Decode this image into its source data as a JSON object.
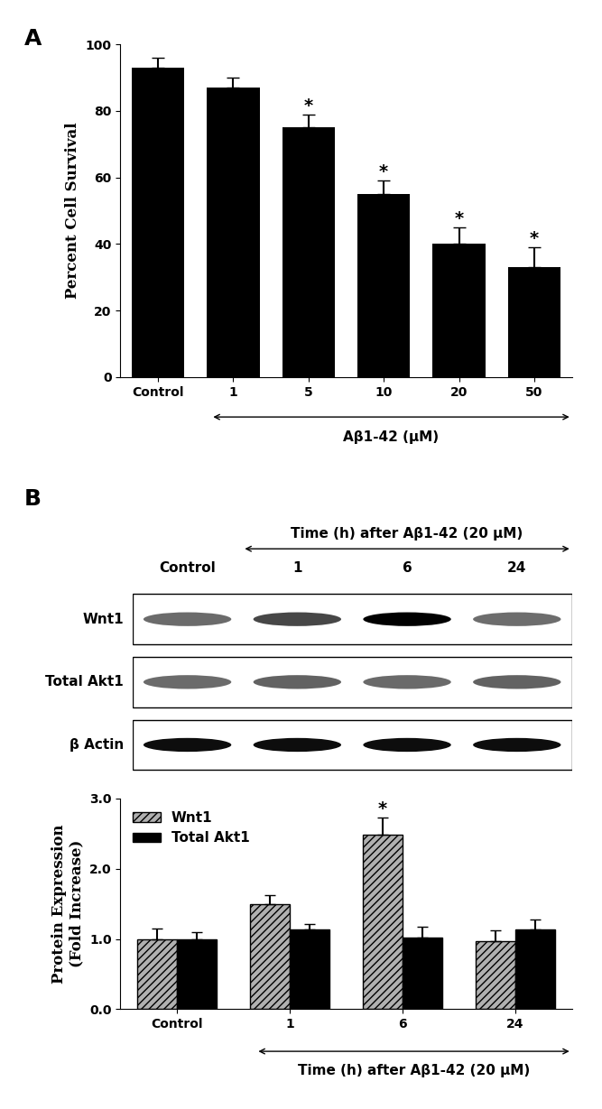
{
  "panel_labels": [
    "A",
    "B"
  ],
  "chart_data": [
    {
      "type": "bar",
      "categories": [
        "Control",
        "1",
        "5",
        "10",
        "20",
        "50"
      ],
      "values": [
        93,
        87,
        75,
        55,
        40,
        33
      ],
      "errors": [
        3,
        3,
        4,
        4,
        5,
        6
      ],
      "significance": [
        null,
        null,
        "*",
        "*",
        "*",
        "*"
      ],
      "color": "#000000",
      "x_label": "Aβ1-42 (μM)",
      "y_label": "Percent Cell Survival",
      "ylim": [
        0,
        100
      ],
      "yticks": [
        0,
        20,
        40,
        60,
        80,
        100
      ]
    },
    {
      "type": "bar",
      "categories": [
        "Control",
        "1",
        "6",
        "24"
      ],
      "series": [
        {
          "name": "Wnt1",
          "color": "#b0b0b0",
          "values": [
            1.0,
            1.5,
            2.48,
            0.97
          ],
          "errors": [
            0.15,
            0.12,
            0.25,
            0.15
          ],
          "significance": [
            null,
            null,
            "*",
            null
          ]
        },
        {
          "name": "Total Akt1",
          "color": "#000000",
          "values": [
            1.0,
            1.13,
            1.02,
            1.13
          ],
          "errors": [
            0.1,
            0.08,
            0.15,
            0.15
          ],
          "significance": [
            null,
            null,
            null,
            null
          ]
        }
      ],
      "x_label": "Time (h) after Aβ1-42 (20 μM)",
      "y_label": "Protein Expression\n(Fold Increase)",
      "ylim": [
        0,
        3
      ],
      "yticks": [
        {
          "value": 0,
          "label": "0.0"
        },
        {
          "value": 1,
          "label": "1.0"
        },
        {
          "value": 2,
          "label": "2.0"
        },
        {
          "value": 3,
          "label": "3.0"
        }
      ],
      "legend": "upper left"
    }
  ],
  "blot": {
    "header": "Time (h) after Aβ1-42 (20 μM)",
    "lanes": [
      "Control",
      "1",
      "6",
      "24"
    ],
    "rows": [
      "Wnt1",
      "Total Akt1",
      "β Actin"
    ]
  }
}
